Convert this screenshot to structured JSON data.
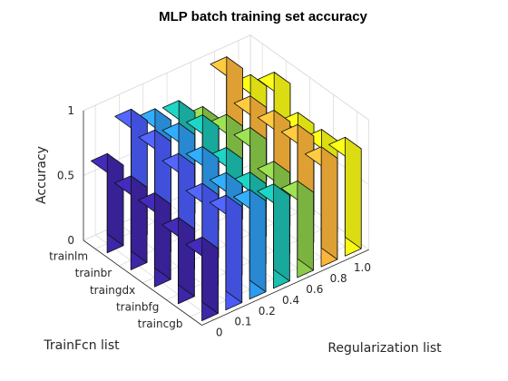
{
  "chart_data": {
    "type": "bar3",
    "title": "MLP batch training set accuracy",
    "xlabel": "Regularization list",
    "ylabel": "TrainFcn list",
    "zlabel": "Accuracy",
    "x_categories": [
      "0",
      "0.1",
      "0.2",
      "0.4",
      "0.6",
      "0.8",
      "1.0"
    ],
    "y_categories": [
      "trainlm",
      "trainbr",
      "traingdx",
      "trainbfg",
      "traincgb"
    ],
    "z_ticks": [
      "0",
      "0.5",
      "1"
    ],
    "zlim": [
      0,
      1
    ],
    "grid": true,
    "values": [
      [
        0.62,
        0.88,
        0.8,
        0.78,
        0.65,
        0.95,
        0.73
      ],
      [
        0.58,
        0.85,
        0.82,
        0.8,
        0.72,
        0.78,
        0.88
      ],
      [
        0.58,
        0.8,
        0.77,
        0.68,
        0.75,
        0.8,
        0.7
      ],
      [
        0.52,
        0.7,
        0.7,
        0.62,
        0.62,
        0.82,
        0.7
      ],
      [
        0.5,
        0.74,
        0.7,
        0.66,
        0.6,
        0.78,
        0.77
      ]
    ],
    "column_colors": [
      "#3e26a8",
      "#4a5bf8",
      "#2d9bef",
      "#1bbfb1",
      "#8ccb4a",
      "#fcb53a",
      "#f9fb15"
    ]
  }
}
